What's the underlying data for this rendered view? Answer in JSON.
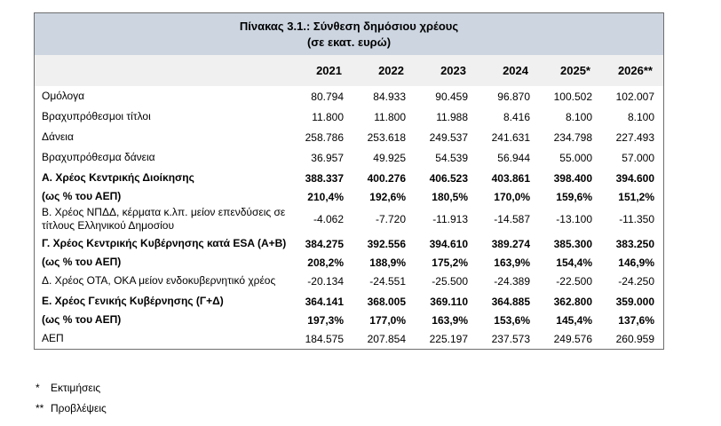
{
  "table": {
    "title": "Πίνακας 3.1.: Σύνθεση δημόσιου χρέους",
    "subtitle": "(σε εκατ. ευρώ)",
    "columns": [
      "2021",
      "2022",
      "2023",
      "2024",
      "2025*",
      "2026**"
    ],
    "rows": [
      {
        "label": "Ομόλογα",
        "bold": false,
        "values": [
          "80.794",
          "84.933",
          "90.459",
          "96.870",
          "100.502",
          "102.007"
        ]
      },
      {
        "label": "Βραχυπρόθεσμοι τίτλοι",
        "bold": false,
        "values": [
          "11.800",
          "11.800",
          "11.988",
          "8.416",
          "8.100",
          "8.100"
        ]
      },
      {
        "label": "Δάνεια",
        "bold": false,
        "values": [
          "258.786",
          "253.618",
          "249.537",
          "241.631",
          "234.798",
          "227.493"
        ]
      },
      {
        "label": "Βραχυπρόθεσμα δάνεια",
        "bold": false,
        "values": [
          "36.957",
          "49.925",
          "54.539",
          "56.944",
          "55.000",
          "57.000"
        ]
      },
      {
        "label": "Α. Χρέος Κεντρικής Διοίκησης",
        "bold": true,
        "values": [
          "388.337",
          "400.276",
          "406.523",
          "403.861",
          "398.400",
          "394.600"
        ]
      },
      {
        "label": "(ως % του ΑΕΠ)",
        "bold": true,
        "values": [
          "210,4%",
          "192,6%",
          "180,5%",
          "170,0%",
          "159,6%",
          "151,2%"
        ]
      },
      {
        "label": "Β. Χρέος ΝΠΔΔ, κέρματα κ.λπ. μείον επενδύσεις σε τίτλους Ελληνικού Δημοσίου",
        "bold": false,
        "values": [
          "-4.062",
          "-7.720",
          "-11.913",
          "-14.587",
          "-13.100",
          "-11.350"
        ]
      },
      {
        "label": "Γ. Χρέος Κεντρικής Κυβέρνησης κατά ESA (Α+Β)",
        "bold": true,
        "values": [
          "384.275",
          "392.556",
          "394.610",
          "389.274",
          "385.300",
          "383.250"
        ]
      },
      {
        "label": "(ως % του ΑΕΠ)",
        "bold": true,
        "values": [
          "208,2%",
          "188,9%",
          "175,2%",
          "163,9%",
          "154,4%",
          "146,9%"
        ]
      },
      {
        "label": "Δ. Χρέος ΟΤΑ, ΟΚΑ μείον ενδοκυβερνητικό χρέος",
        "bold": false,
        "values": [
          "-20.134",
          "-24.551",
          "-25.500",
          "-24.389",
          "-22.500",
          "-24.250"
        ]
      },
      {
        "label": "Ε. Χρέος Γενικής Κυβέρνησης (Γ+Δ)",
        "bold": true,
        "values": [
          "364.141",
          "368.005",
          "369.110",
          "364.885",
          "362.800",
          "359.000"
        ]
      },
      {
        "label": "(ως % του ΑΕΠ)",
        "bold": true,
        "values": [
          "197,3%",
          "177,0%",
          "163,9%",
          "153,6%",
          "145,4%",
          "137,6%"
        ]
      },
      {
        "label": "ΑΕΠ",
        "bold": false,
        "values": [
          "184.575",
          "207.854",
          "225.197",
          "237.573",
          "249.576",
          "260.959"
        ]
      }
    ],
    "footnotes": [
      {
        "marker": "*",
        "text": "Εκτιμήσεις"
      },
      {
        "marker": "**",
        "text": "Προβλέψεις"
      }
    ],
    "colors": {
      "title_band": "#ccd5e0",
      "header_band": "#f0f0f0",
      "border": "#6e6e6e",
      "text": "#000000"
    }
  }
}
